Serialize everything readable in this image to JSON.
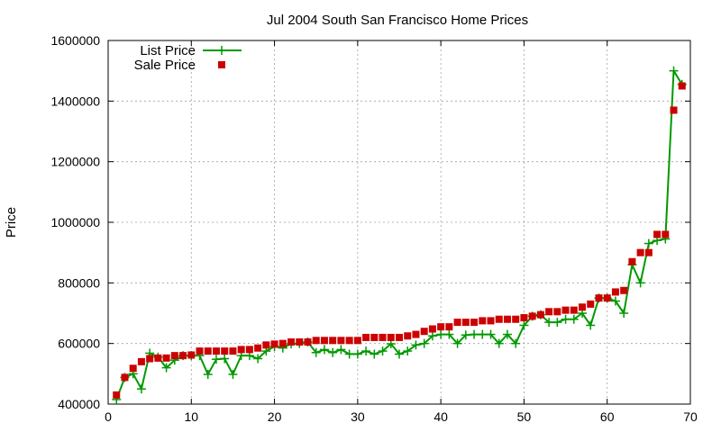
{
  "chart_data": {
    "type": "line",
    "title": "Jul 2004 South San Francisco Home Prices",
    "xlabel": "",
    "ylabel": "Price",
    "xlim": [
      0,
      70
    ],
    "ylim": [
      400000,
      1600000
    ],
    "xticks": [
      0,
      10,
      20,
      30,
      40,
      50,
      60,
      70
    ],
    "yticks": [
      400000,
      600000,
      800000,
      1000000,
      1200000,
      1400000,
      1600000
    ],
    "grid": true,
    "legend_position": "top-left",
    "series": [
      {
        "name": "List Price",
        "style": "line-points",
        "marker": "plus",
        "color": "#009900",
        "x": [
          1,
          2,
          3,
          4,
          5,
          6,
          7,
          8,
          9,
          10,
          11,
          12,
          13,
          14,
          15,
          16,
          17,
          18,
          19,
          20,
          21,
          22,
          23,
          24,
          25,
          26,
          27,
          28,
          29,
          30,
          31,
          32,
          33,
          34,
          35,
          36,
          37,
          38,
          39,
          40,
          41,
          42,
          43,
          44,
          45,
          46,
          47,
          48,
          49,
          50,
          51,
          52,
          53,
          54,
          55,
          56,
          57,
          58,
          59,
          60,
          61,
          62,
          63,
          64,
          65,
          66,
          67,
          68,
          69
        ],
        "y": [
          415000,
          488000,
          500000,
          450000,
          568000,
          555000,
          520000,
          545000,
          560000,
          560000,
          560000,
          498000,
          548000,
          550000,
          498000,
          560000,
          560000,
          550000,
          575000,
          590000,
          585000,
          599000,
          600000,
          605000,
          570000,
          580000,
          570000,
          580000,
          565000,
          565000,
          575000,
          565000,
          575000,
          599000,
          565000,
          575000,
          595000,
          600000,
          625000,
          630000,
          630000,
          600000,
          628000,
          630000,
          630000,
          630000,
          600000,
          630000,
          600000,
          660000,
          690000,
          695000,
          670000,
          670000,
          680000,
          680000,
          700000,
          660000,
          750000,
          750000,
          740000,
          700000,
          860000,
          800000,
          930000,
          940000,
          945000,
          1500000,
          1455000
        ]
      },
      {
        "name": "Sale Price",
        "style": "points",
        "marker": "square",
        "color": "#cc0000",
        "x": [
          1,
          2,
          3,
          4,
          5,
          6,
          7,
          8,
          9,
          10,
          11,
          12,
          13,
          14,
          15,
          16,
          17,
          18,
          19,
          20,
          21,
          22,
          23,
          24,
          25,
          26,
          27,
          28,
          29,
          30,
          31,
          32,
          33,
          34,
          35,
          36,
          37,
          38,
          39,
          40,
          41,
          42,
          43,
          44,
          45,
          46,
          47,
          48,
          49,
          50,
          51,
          52,
          53,
          54,
          55,
          56,
          57,
          58,
          59,
          60,
          61,
          62,
          63,
          64,
          65,
          66,
          67,
          68,
          69
        ],
        "y": [
          430000,
          488000,
          518000,
          540000,
          550000,
          552000,
          552000,
          560000,
          560000,
          562000,
          575000,
          575000,
          575000,
          575000,
          575000,
          580000,
          580000,
          585000,
          595000,
          598000,
          600000,
          605000,
          605000,
          605000,
          610000,
          610000,
          610000,
          610000,
          610000,
          610000,
          620000,
          620000,
          620000,
          620000,
          620000,
          625000,
          630000,
          640000,
          648000,
          655000,
          655000,
          670000,
          670000,
          670000,
          675000,
          675000,
          680000,
          680000,
          680000,
          685000,
          690000,
          695000,
          705000,
          705000,
          710000,
          710000,
          720000,
          730000,
          750000,
          750000,
          770000,
          775000,
          870000,
          900000,
          900000,
          960000,
          960000,
          1370000,
          1450000
        ]
      }
    ]
  }
}
